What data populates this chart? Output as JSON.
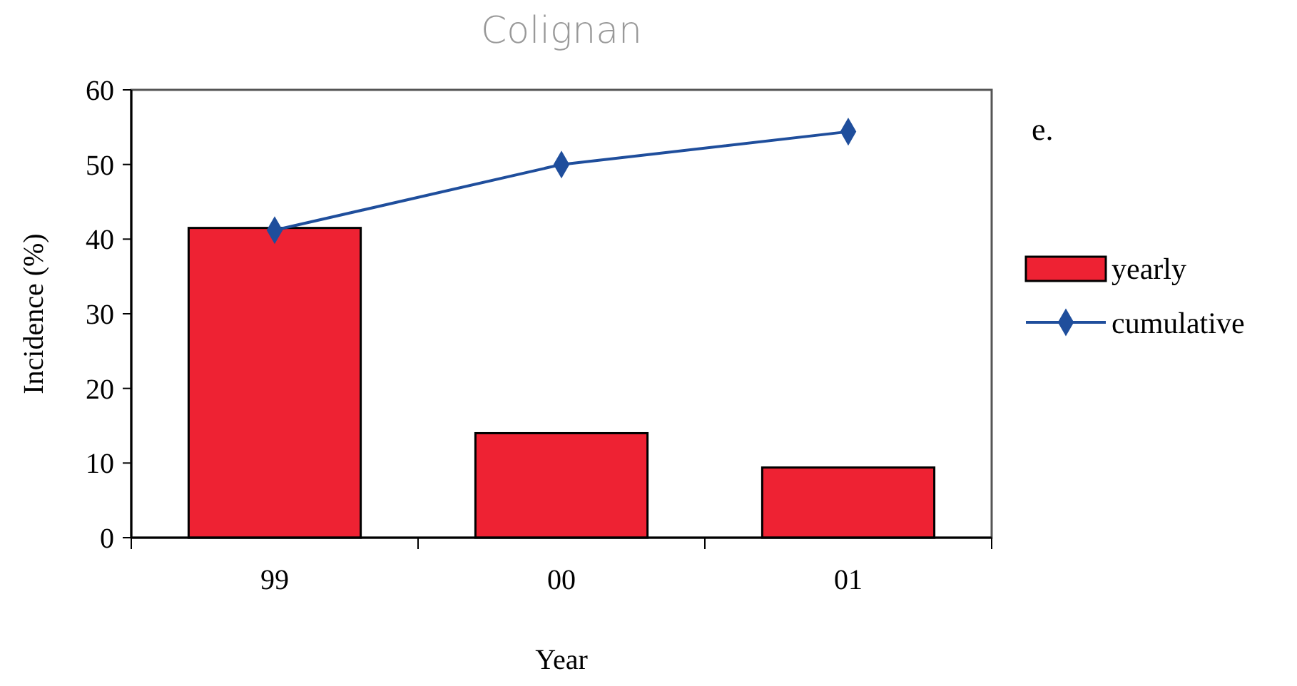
{
  "chart_data": {
    "type": "bar",
    "title": "Colignan",
    "xlabel": "Year",
    "ylabel": "Incidence (%)",
    "annotations": [
      "e."
    ],
    "categories": [
      "99",
      "00",
      "01"
    ],
    "series": [
      {
        "name": "yearly",
        "color": "#ee2233",
        "values": [
          41.5,
          14.0,
          9.4
        ]
      },
      {
        "name": "cumulative",
        "type": "line",
        "color": "#1f4e9c",
        "values": [
          41.2,
          50.0,
          54.4
        ],
        "marker": "diamond"
      }
    ],
    "ylim": [
      0,
      60
    ],
    "yticks": [
      0,
      10,
      20,
      30,
      40,
      50,
      60
    ],
    "grid": false,
    "legend": "right"
  }
}
